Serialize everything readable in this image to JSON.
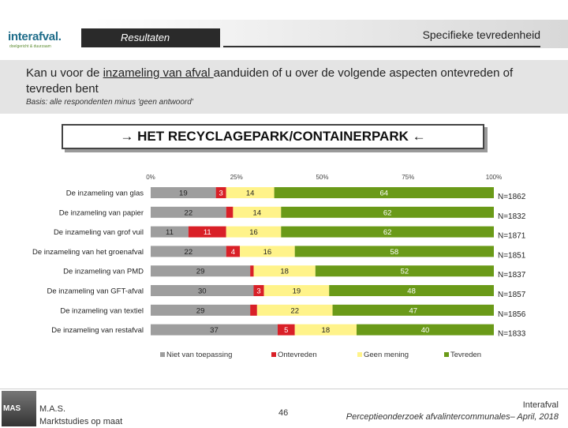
{
  "header": {
    "logo": "interafval.",
    "logo_tagline": "doelgericht & duurzaam",
    "section": "Resultaten",
    "subtitle": "Specifieke tevredenheid"
  },
  "question": {
    "prefix": "Kan u voor de ",
    "underlined": "inzameling van afval ",
    "suffix": "aanduiden of u over de volgende aspecten ontevreden of tevreden bent",
    "basis": "Basis: alle respondenten minus 'geen antwoord'"
  },
  "chart_title": "→ HET RECYCLAGEPARK/CONTAINERPARK ←",
  "chart_data": {
    "type": "bar",
    "orientation": "horizontal-stacked-100",
    "axis_ticks": [
      "0%",
      "25%",
      "50%",
      "75%",
      "100%"
    ],
    "xlim": [
      0,
      100
    ],
    "categories": [
      "De inzameling van glas",
      "De inzameling van papier",
      "De inzameling van grof vuil",
      "De inzameling van het groenafval",
      "De inzameling van PMD",
      "De inzameling van GFT-afval",
      "De inzameling van textiel",
      "De inzameling van restafval"
    ],
    "series": [
      {
        "name": "Niet van toepassing",
        "color": "#9e9e9e",
        "values": [
          19,
          22,
          11,
          22,
          29,
          30,
          29,
          37
        ]
      },
      {
        "name": "Ontevreden",
        "color": "#d92027",
        "values": [
          3,
          2,
          11,
          4,
          1,
          3,
          2,
          5
        ]
      },
      {
        "name": "Geen mening",
        "color": "#fff38a",
        "values": [
          14,
          14,
          16,
          16,
          18,
          19,
          22,
          18
        ]
      },
      {
        "name": "Tevreden",
        "color": "#6a9a18",
        "values": [
          64,
          62,
          62,
          58,
          52,
          48,
          47,
          40
        ]
      }
    ],
    "labels": [
      [
        "19",
        "3",
        "14",
        "64"
      ],
      [
        "22",
        "",
        "14",
        "62"
      ],
      [
        "11",
        "11",
        "16",
        "62"
      ],
      [
        "22",
        "4",
        "16",
        "58"
      ],
      [
        "29",
        "",
        "18",
        "52"
      ],
      [
        "30",
        "3",
        "19",
        "48"
      ],
      [
        "29",
        "",
        "22",
        "47"
      ],
      [
        "37",
        "5",
        "18",
        "40"
      ]
    ],
    "n_labels": [
      "N=1862",
      "N=1832",
      "N=1871",
      "N=1851",
      "N=1837",
      "N=1857",
      "N=1856",
      "N=1833"
    ]
  },
  "footer": {
    "org_line1": "M.A.S.",
    "org_line2": "Marktstudies op maat",
    "page": "46",
    "right_line1": "Interafval",
    "right_line2": "Perceptieonderzoek afvalintercommunales– April, 2018",
    "mas_badge": "MAS"
  }
}
